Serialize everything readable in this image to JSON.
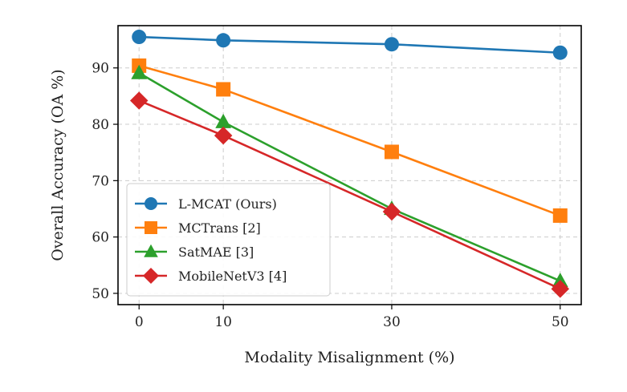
{
  "chart_data": {
    "type": "line",
    "x": [
      0,
      10,
      30,
      50
    ],
    "xlabel": "Modality Misalignment (%)",
    "ylabel": "Overall Accuracy (OA %)",
    "xticks": [
      "0",
      "10",
      "30",
      "50"
    ],
    "yticks": [
      50,
      60,
      70,
      80,
      90
    ],
    "xlim": [
      -2.5,
      52.5
    ],
    "ylim": [
      48,
      97.5
    ],
    "grid": true,
    "legend_position": "lower-left",
    "series": [
      {
        "name": "L-MCAT (Ours)",
        "values": [
          95.5,
          94.9,
          94.2,
          92.7
        ],
        "color": "#1f77b4",
        "marker": "circle"
      },
      {
        "name": "MCTrans [2]",
        "values": [
          90.4,
          86.2,
          75.1,
          63.8
        ],
        "color": "#ff7f0e",
        "marker": "square"
      },
      {
        "name": "SatMAE [3]",
        "values": [
          89.1,
          80.4,
          65.0,
          52.2
        ],
        "color": "#2ca02c",
        "marker": "triangle"
      },
      {
        "name": "MobileNetV3 [4]",
        "values": [
          84.2,
          78.0,
          64.5,
          50.8
        ],
        "color": "#d62728",
        "marker": "diamond"
      }
    ]
  }
}
